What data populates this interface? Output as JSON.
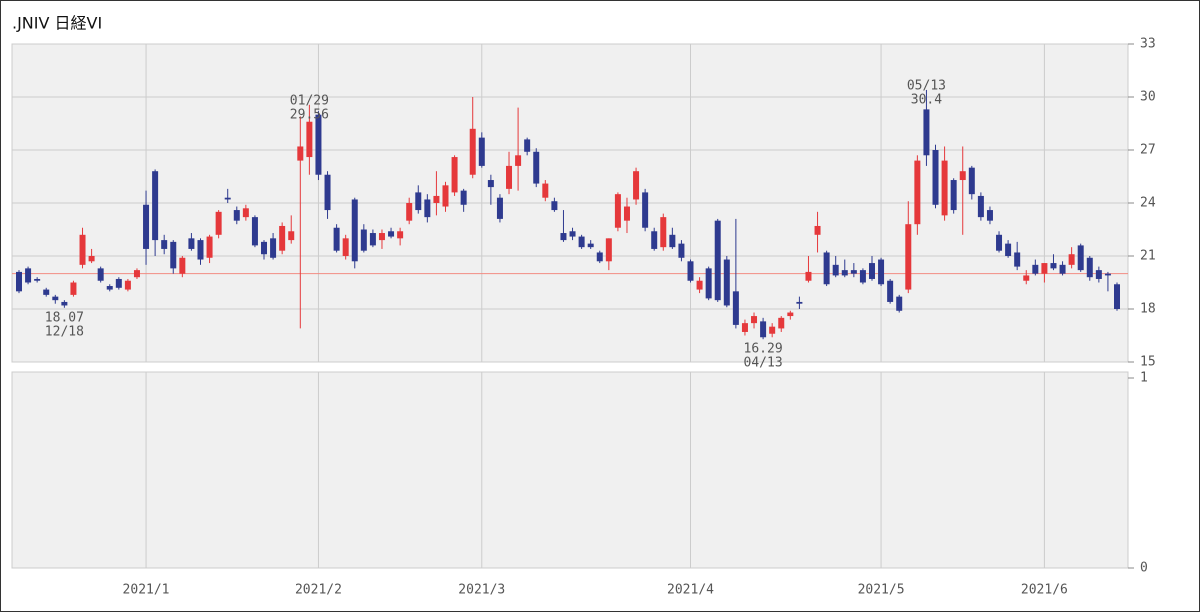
{
  "chart_data": [
    {
      "type": "candlestick",
      "title": ".JNIV 日経VI",
      "categories": [
        null,
        null,
        null,
        null,
        null,
        null,
        null,
        null,
        null,
        null,
        null,
        null,
        null,
        null,
        "2021/1",
        null,
        null,
        null,
        null,
        null,
        null,
        null,
        null,
        null,
        null,
        null,
        null,
        null,
        null,
        null,
        null,
        null,
        null,
        "2021/2",
        null,
        null,
        null,
        null,
        null,
        null,
        null,
        null,
        null,
        null,
        null,
        null,
        null,
        null,
        null,
        null,
        null,
        "2021/3",
        null,
        null,
        null,
        null,
        null,
        null,
        null,
        null,
        null,
        null,
        null,
        null,
        null,
        null,
        null,
        null,
        null,
        null,
        null,
        null,
        null,
        null,
        "2021/4",
        null,
        null,
        null,
        null,
        null,
        null,
        null,
        null,
        null,
        null,
        null,
        null,
        null,
        null,
        null,
        null,
        null,
        null,
        null,
        null,
        "2021/5",
        null,
        null,
        null,
        null,
        null,
        null,
        null,
        null,
        null,
        null,
        null,
        null,
        null,
        null,
        null,
        null,
        null,
        "2021/6",
        null,
        null,
        null,
        null,
        null,
        null,
        null,
        null
      ],
      "open": [
        20.1,
        20.3,
        19.7,
        19.1,
        18.7,
        18.4,
        18.8,
        20.5,
        20.7,
        20.3,
        19.3,
        19.7,
        19.1,
        19.8,
        23.9,
        25.8,
        21.9,
        21.8,
        20.0,
        22.0,
        21.9,
        20.9,
        22.2,
        24.3,
        23.6,
        23.2,
        23.2,
        21.8,
        22.0,
        21.3,
        21.9,
        26.4,
        26.6,
        29.0,
        25.6,
        22.6,
        21.0,
        24.2,
        22.5,
        22.3,
        21.9,
        22.4,
        22.0,
        23.0,
        24.6,
        24.2,
        24.0,
        23.8,
        24.6,
        24.7,
        25.6,
        27.7,
        25.3,
        24.3,
        24.8,
        26.1,
        27.6,
        26.9,
        24.3,
        24.1,
        22.3,
        22.4,
        22.1,
        21.7,
        21.2,
        20.7,
        22.6,
        23.0,
        24.2,
        24.6,
        22.4,
        21.5,
        22.2,
        21.7,
        20.7,
        19.1,
        20.3,
        23.0,
        20.8,
        19.0,
        16.7,
        17.2,
        17.3,
        16.6,
        16.9,
        17.6,
        18.4,
        19.6,
        22.2,
        21.2,
        20.5,
        20.2,
        20.2,
        20.2,
        20.6,
        20.8,
        19.6,
        18.7,
        19.1,
        22.8,
        29.3,
        27.0,
        23.3,
        25.3,
        25.3,
        26.0,
        24.4,
        23.6,
        22.2,
        21.7,
        21.2,
        19.6,
        20.5,
        20.0,
        20.6,
        20.5,
        20.5,
        21.6,
        20.9,
        20.2,
        20.0,
        19.4
      ],
      "high": [
        20.2,
        20.4,
        19.8,
        19.2,
        18.8,
        18.5,
        19.6,
        22.6,
        21.4,
        20.4,
        19.4,
        19.8,
        19.7,
        20.3,
        24.7,
        25.9,
        22.2,
        21.9,
        21.0,
        22.3,
        22.0,
        22.2,
        23.6,
        24.8,
        23.8,
        23.9,
        23.3,
        21.9,
        22.3,
        22.9,
        23.3,
        28.9,
        29.56,
        29.2,
        25.8,
        22.8,
        22.2,
        24.3,
        22.8,
        22.5,
        22.5,
        22.6,
        22.6,
        24.3,
        25.0,
        24.5,
        25.8,
        25.2,
        26.7,
        24.8,
        30.0,
        28.0,
        25.6,
        24.5,
        26.9,
        29.4,
        27.7,
        27.1,
        25.3,
        24.3,
        23.6,
        22.6,
        22.2,
        21.9,
        21.3,
        22.0,
        24.6,
        24.3,
        26.0,
        24.8,
        22.6,
        23.4,
        22.6,
        21.9,
        20.8,
        19.8,
        20.4,
        23.1,
        21.0,
        23.1,
        17.4,
        17.8,
        17.5,
        17.2,
        17.6,
        17.9,
        18.7,
        21.0,
        23.5,
        21.3,
        21.0,
        20.8,
        20.6,
        20.3,
        21.0,
        20.9,
        19.7,
        18.8,
        24.1,
        26.7,
        30.4,
        27.3,
        27.2,
        25.4,
        27.2,
        26.1,
        24.6,
        23.8,
        22.4,
        21.9,
        21.8,
        20.2,
        20.8,
        20.6,
        21.1,
        20.7,
        21.5,
        21.7,
        21.0,
        20.4,
        20.1,
        19.5
      ],
      "low": [
        18.9,
        19.4,
        19.5,
        18.7,
        18.3,
        18.07,
        18.7,
        20.3,
        20.6,
        19.5,
        19.0,
        19.1,
        19.0,
        19.7,
        20.5,
        21.0,
        21.1,
        20.0,
        19.8,
        21.3,
        20.5,
        20.6,
        22.0,
        24.0,
        22.8,
        23.0,
        21.5,
        20.8,
        20.8,
        21.1,
        21.7,
        16.9,
        25.6,
        25.3,
        23.1,
        21.2,
        20.8,
        20.3,
        21.2,
        21.5,
        21.4,
        22.0,
        21.6,
        22.8,
        23.4,
        22.9,
        23.3,
        23.5,
        24.4,
        23.5,
        25.4,
        26.0,
        23.9,
        22.9,
        24.5,
        24.7,
        26.7,
        24.9,
        24.1,
        23.5,
        21.8,
        21.9,
        21.4,
        21.4,
        20.6,
        20.2,
        22.4,
        22.3,
        23.9,
        22.4,
        21.3,
        21.3,
        21.4,
        20.7,
        19.5,
        18.9,
        18.5,
        18.4,
        18.1,
        16.9,
        16.5,
        16.9,
        16.29,
        16.4,
        16.7,
        17.4,
        18.0,
        19.5,
        21.2,
        19.3,
        19.8,
        19.8,
        19.8,
        19.4,
        19.6,
        19.3,
        18.3,
        17.8,
        18.9,
        22.2,
        26.1,
        23.7,
        23.0,
        23.4,
        22.2,
        24.2,
        23.0,
        22.8,
        21.2,
        20.9,
        20.2,
        19.4,
        19.9,
        19.5,
        20.2,
        19.9,
        20.3,
        20.1,
        19.6,
        19.5,
        19.0,
        17.9
      ],
      "close": [
        19.0,
        19.5,
        19.6,
        18.8,
        18.5,
        18.2,
        19.5,
        22.2,
        21.0,
        19.6,
        19.1,
        19.2,
        19.6,
        20.2,
        21.4,
        21.9,
        21.4,
        20.3,
        20.9,
        21.4,
        20.8,
        22.1,
        23.5,
        24.2,
        23.0,
        23.7,
        21.6,
        21.1,
        20.9,
        22.7,
        22.4,
        27.2,
        28.6,
        25.6,
        23.6,
        21.3,
        22.0,
        20.7,
        21.3,
        21.6,
        22.3,
        22.1,
        22.4,
        24.0,
        23.6,
        23.2,
        24.4,
        25.0,
        26.6,
        23.9,
        28.2,
        26.1,
        24.9,
        23.1,
        26.1,
        26.7,
        26.9,
        25.1,
        25.1,
        23.6,
        21.9,
        22.1,
        21.5,
        21.5,
        20.7,
        22.0,
        24.5,
        23.8,
        25.8,
        22.6,
        21.4,
        23.2,
        21.5,
        20.9,
        19.6,
        19.6,
        18.6,
        18.5,
        18.2,
        17.1,
        17.2,
        17.6,
        16.4,
        17.0,
        17.5,
        17.8,
        18.3,
        20.1,
        22.7,
        19.4,
        19.9,
        19.9,
        20.0,
        19.5,
        19.7,
        19.4,
        18.4,
        17.9,
        22.8,
        26.4,
        26.7,
        23.9,
        26.4,
        23.6,
        25.8,
        24.5,
        23.2,
        23.0,
        21.3,
        21.0,
        20.4,
        19.9,
        20.0,
        20.6,
        20.3,
        20.0,
        21.1,
        20.2,
        19.8,
        19.7,
        19.9,
        18.0
      ],
      "up_color": "#e5383b",
      "down_color": "#2e3a8f",
      "ylim": [
        15,
        33
      ],
      "yticks": [
        15,
        18,
        21,
        24,
        27,
        30,
        33
      ],
      "grid": true,
      "reference_line": {
        "value": 20,
        "color": "#f28b82"
      },
      "annotations": [
        {
          "date": "12/18",
          "value": 18.07
        },
        {
          "date": "01/29",
          "value": 29.56
        },
        {
          "date": "04/13",
          "value": 16.29
        },
        {
          "date": "05/13",
          "value": 30.4
        }
      ]
    },
    {
      "type": "bar",
      "ylim": [
        0,
        1
      ],
      "yticks": [
        0,
        1
      ]
    }
  ]
}
